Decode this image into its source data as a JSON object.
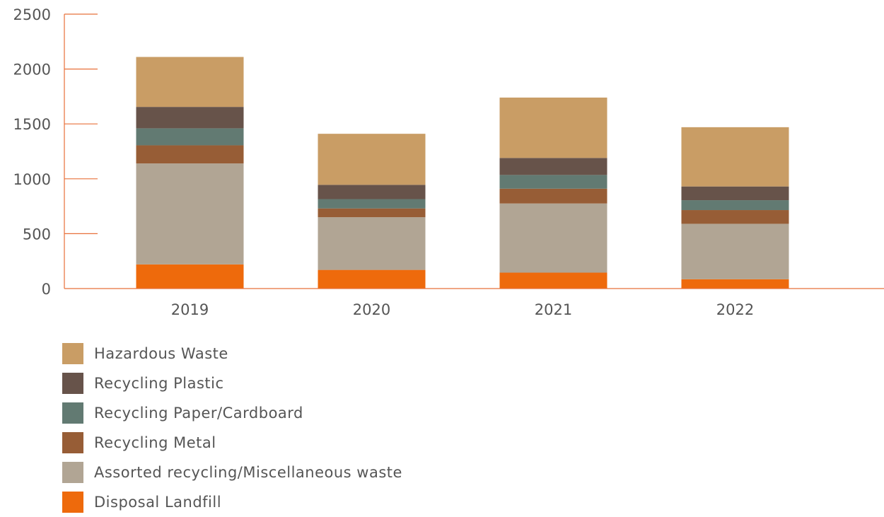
{
  "chart_data": {
    "type": "bar",
    "stacked": true,
    "title": "",
    "xlabel": "",
    "ylabel": "",
    "ylim": [
      0,
      2500
    ],
    "yticks": [
      0,
      500,
      1000,
      1500,
      2000,
      2500
    ],
    "categories": [
      "2019",
      "2020",
      "2021",
      "2022"
    ],
    "grid": false,
    "legend_position": "bottom-left",
    "axis_color": "#e8703a",
    "series": [
      {
        "name": "Disposal Landfill",
        "color": "#ee6a0c",
        "values": [
          220,
          170,
          145,
          85
        ]
      },
      {
        "name": "Assorted recycling/Miscellaneous waste",
        "color": "#b1a594",
        "values": [
          920,
          480,
          630,
          505
        ]
      },
      {
        "name": "Recycling Metal",
        "color": "#975d36",
        "values": [
          165,
          80,
          135,
          125
        ]
      },
      {
        "name": "Recycling Paper/Cardboard",
        "color": "#627a72",
        "values": [
          155,
          85,
          125,
          90
        ]
      },
      {
        "name": "Recycling Plastic",
        "color": "#67534a",
        "values": [
          195,
          130,
          155,
          125
        ]
      },
      {
        "name": "Hazardous Waste",
        "color": "#c99d65",
        "values": [
          455,
          465,
          550,
          540
        ]
      }
    ]
  }
}
